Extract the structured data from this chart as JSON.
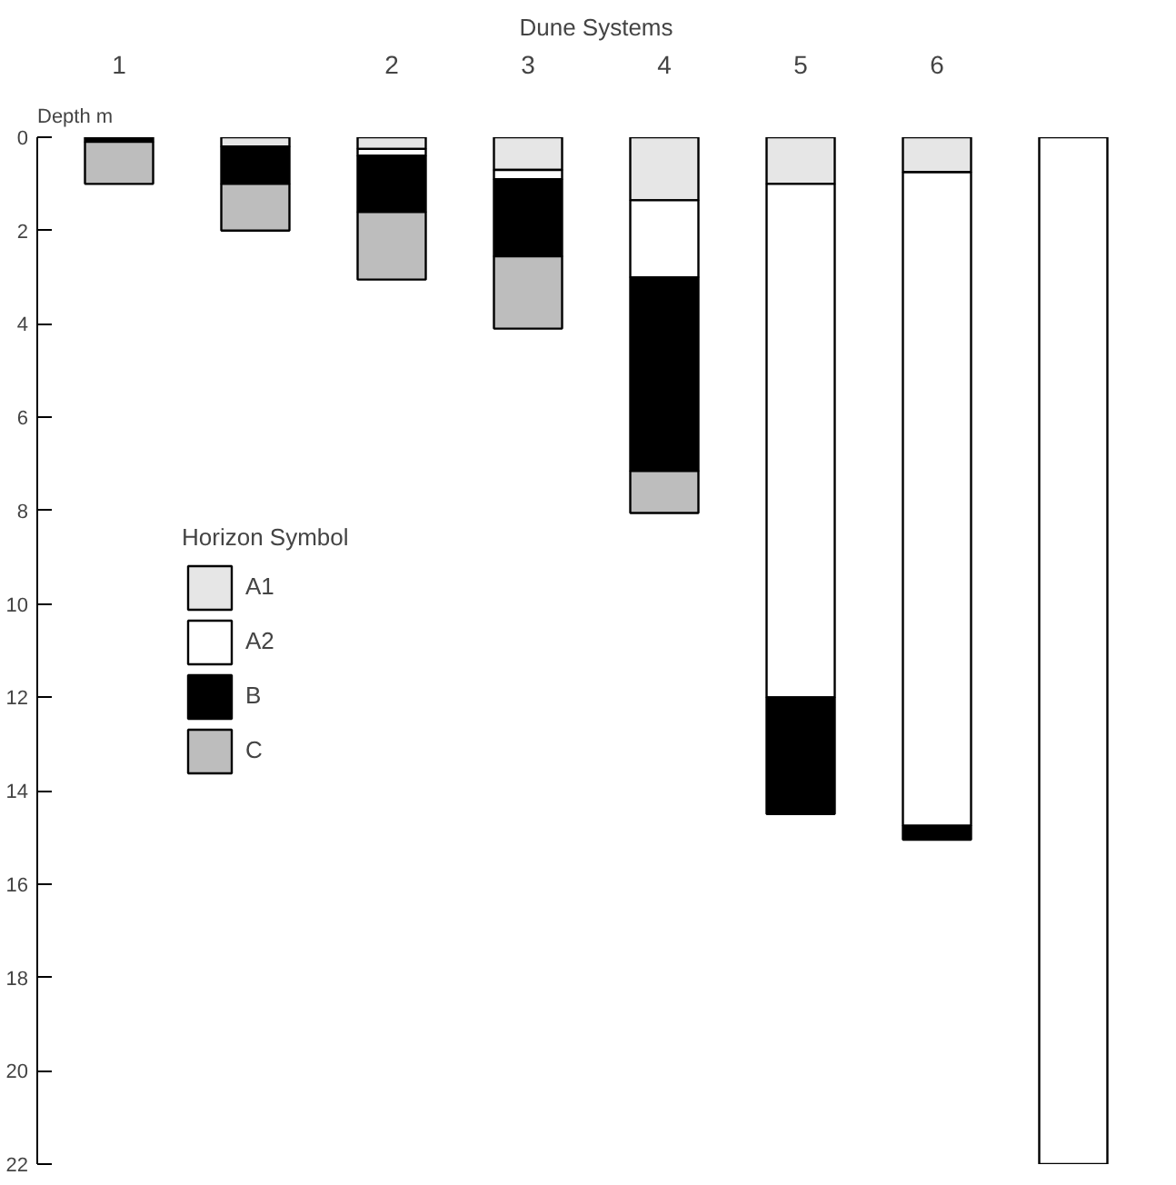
{
  "chart_data": {
    "type": "bar",
    "stacked": true,
    "title": "Dune Systems",
    "ylabel": "Depth m",
    "legend_title": "Horizon Symbol",
    "legend": "left",
    "grid": false,
    "categories": [
      "1",
      null,
      "2",
      "3",
      "4",
      "5",
      "6",
      null
    ],
    "ylim": [
      22,
      0
    ],
    "yticks": [
      0,
      2,
      4,
      6,
      8,
      10,
      12,
      14,
      16,
      18,
      20,
      22
    ],
    "series": [
      {
        "name": "A1",
        "color": "#e6e6e6",
        "values": [
          null,
          0.2,
          0.25,
          0.7,
          1.35,
          1.0,
          0.75,
          null
        ]
      },
      {
        "name": "A2",
        "color": "#ffffff",
        "values": [
          null,
          null,
          0.15,
          0.2,
          1.65,
          11.0,
          14.0,
          22.0
        ]
      },
      {
        "name": "B",
        "color": "#000000",
        "values": [
          0.1,
          0.8,
          1.2,
          1.65,
          4.15,
          2.5,
          0.3,
          null
        ]
      },
      {
        "name": "C",
        "color": "#bdbdbd",
        "values": [
          0.9,
          1.0,
          1.45,
          1.55,
          0.9,
          null,
          null,
          null
        ]
      }
    ]
  }
}
